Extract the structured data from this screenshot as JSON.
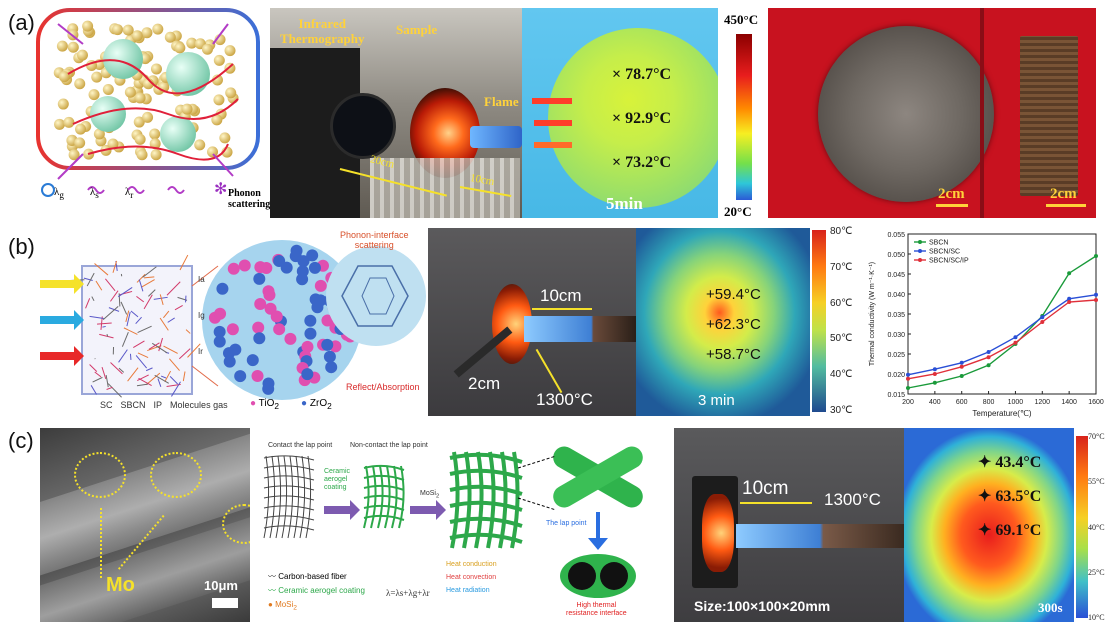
{
  "panels": {
    "a": {
      "label": "(a)",
      "schematic": {
        "legend": [
          {
            "symbol": "λ",
            "sub": "g"
          },
          {
            "symbol": "λ",
            "sub": "s"
          },
          {
            "symbol": "λ",
            "sub": "r"
          }
        ],
        "phonon_label": "Phonon",
        "scattering_label": "scattering"
      },
      "photo1": {
        "infrared_label": "Infrared",
        "thermography_label": "Thermography",
        "sample_label": "Sample",
        "flame_label": "Flame",
        "dist1": "20cm",
        "dist2": "10cm"
      },
      "thermal": {
        "readings": [
          "78.7°C",
          "92.9°C",
          "73.2°C"
        ],
        "time": "5min"
      },
      "colorbar": {
        "max": "450°C",
        "min": "20°C"
      },
      "photo2": {
        "scale1": "2cm",
        "scale2": "2cm"
      }
    },
    "b": {
      "label": "(b)",
      "schematic": {
        "legend_items": [
          "SC",
          "SBCN",
          "IP",
          "Molecules gas"
        ],
        "oxides": [
          "TiO",
          "ZrO"
        ],
        "phonon_interface": "Phonon-interface",
        "scattering": "scattering",
        "reflect": "Reflect/Absorption",
        "arrow_labels": [
          "Ia",
          "Ig",
          "Ir"
        ]
      },
      "photo": {
        "dist": "10cm",
        "size": "2cm",
        "temp": "1300°C"
      },
      "thermal": {
        "readings": [
          "+59.4°C",
          "+62.3°C",
          "+58.7°C"
        ],
        "time": "3 min"
      },
      "colorbar_ticks": [
        "80℃",
        "70℃",
        "60℃",
        "50℃",
        "40℃",
        "30℃"
      ]
    },
    "c": {
      "label": "(c)",
      "sem": {
        "mo_label": "Mo",
        "scale": "10μm"
      },
      "schematic": {
        "top_left": "Contact the lap point",
        "top_mid": "Non-contact the lap point",
        "step1a": "Ceramic",
        "step1b": "aerogel",
        "step1c": "coating",
        "step2": "MoSi",
        "legend": [
          "Carbon-based fiber",
          "Ceramic aerogel coating",
          "MoSi"
        ],
        "formula": "λ=λs+λg+λr",
        "heat_legend": [
          "Heat conduction",
          "Heat convection",
          "Heat radiation"
        ],
        "lap_point": "The lap point",
        "interface1": "High thermal",
        "interface2": "resistance interface"
      },
      "photo": {
        "dist": "10cm",
        "temp": "1300°C",
        "size": "Size:100×100×20mm"
      },
      "thermal": {
        "readings": [
          "✦ 43.4°C",
          "✦ 63.5°C",
          "✦ 69.1°C"
        ],
        "time": "300s"
      },
      "colorbar_ticks": [
        "70°C",
        "55°C",
        "40°C",
        "25°C",
        "10°C"
      ]
    }
  },
  "chart_data": {
    "type": "line",
    "title": "",
    "xlabel": "Temperature(℃)",
    "ylabel": "Thermal conductivity (W m⁻¹·K⁻¹)",
    "x": [
      200,
      400,
      600,
      800,
      1000,
      1200,
      1400,
      1600
    ],
    "xlim": [
      200,
      1600
    ],
    "ylim": [
      0.015,
      0.055
    ],
    "yticks": [
      0.015,
      0.02,
      0.025,
      0.03,
      0.035,
      0.04,
      0.045,
      0.05,
      0.055
    ],
    "xticks": [
      200,
      400,
      600,
      800,
      1000,
      1200,
      1400,
      1600
    ],
    "legend_position": "top-left",
    "series": [
      {
        "name": "SBCN",
        "color": "#1a9a3a",
        "values": [
          0.0165,
          0.0178,
          0.0195,
          0.0222,
          0.0275,
          0.0345,
          0.0452,
          0.0495
        ]
      },
      {
        "name": "SBCN/SC",
        "color": "#2a4fd6",
        "values": [
          0.0198,
          0.0212,
          0.0228,
          0.0255,
          0.0292,
          0.0342,
          0.0388,
          0.0398
        ]
      },
      {
        "name": "SBCN/SC/IP",
        "color": "#e0303a",
        "values": [
          0.0188,
          0.02,
          0.0218,
          0.0242,
          0.0278,
          0.033,
          0.038,
          0.0385
        ]
      }
    ]
  }
}
